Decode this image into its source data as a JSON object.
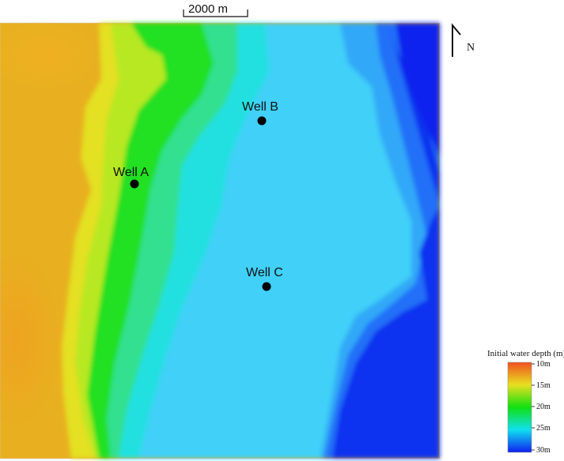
{
  "scale_bar": {
    "label": "2000 m"
  },
  "north_arrow": {
    "label": "N"
  },
  "wells": [
    {
      "label": "Well A"
    },
    {
      "label": "Well B"
    },
    {
      "label": "Well C"
    }
  ],
  "legend": {
    "title": "Initial water depth (m)",
    "ticks": [
      "10m",
      "15m",
      "20m",
      "25m",
      "30m"
    ],
    "colors": [
      "#f05020",
      "#e8e020",
      "#10e010",
      "#10e0f0",
      "#1020f0"
    ]
  }
}
